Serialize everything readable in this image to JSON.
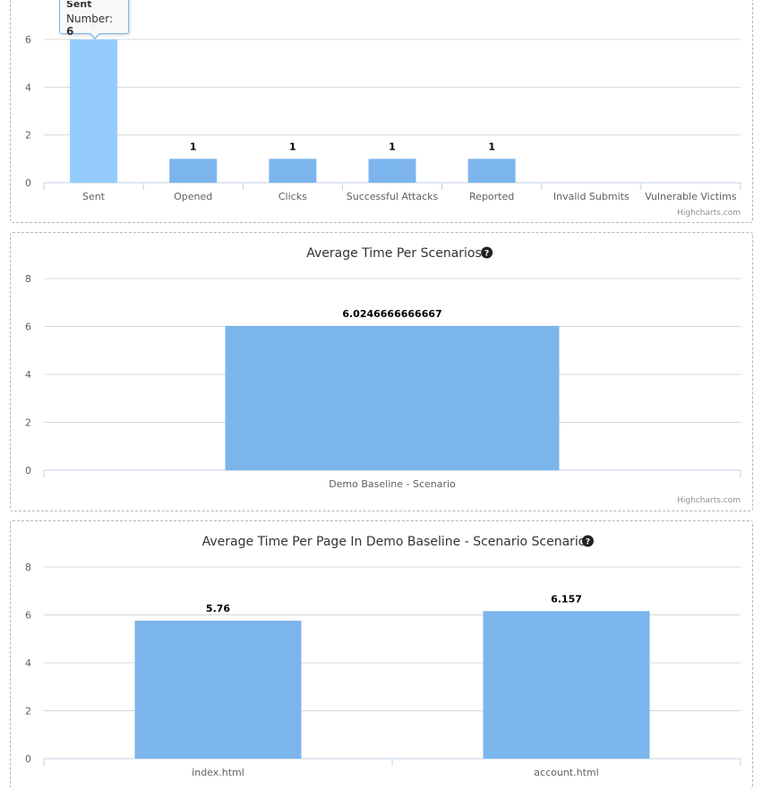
{
  "colors": {
    "bar": "#7cb5ec",
    "bar_hover": "#95ccff"
  },
  "chart_data": [
    {
      "type": "bar",
      "title": "",
      "categories": [
        "Sent",
        "Opened",
        "Clicks",
        "Successful Attacks",
        "Reported",
        "Invalid Submits",
        "Vulnerable Victims"
      ],
      "values": [
        6,
        1,
        1,
        1,
        1,
        0,
        0
      ],
      "data_labels": [
        "6",
        "1",
        "1",
        "1",
        "1",
        "",
        ""
      ],
      "yticks": [
        "0",
        "2",
        "4",
        "6"
      ],
      "ylim": [
        0,
        6
      ],
      "grid": true,
      "hovered_index": 0,
      "credits": "Highcharts.com",
      "tooltip": {
        "title": "Sent",
        "label": "Number:",
        "value": "6"
      }
    },
    {
      "type": "bar",
      "title": "Average Time Per Scenarios",
      "title_icon": "question-circle-icon",
      "categories": [
        "Demo Baseline - Scenario"
      ],
      "values": [
        6.0246666666667
      ],
      "data_labels": [
        "6.0246666666667"
      ],
      "yticks": [
        "0",
        "2",
        "4",
        "6",
        "8"
      ],
      "ylim": [
        0,
        8
      ],
      "grid": true,
      "credits": "Highcharts.com"
    },
    {
      "type": "bar",
      "title": "Average Time Per Page In Demo Baseline - Scenario Scenario",
      "title_icon": "question-circle-icon",
      "categories": [
        "index.html",
        "account.html"
      ],
      "values": [
        5.76,
        6.157
      ],
      "data_labels": [
        "5.76",
        "6.157"
      ],
      "yticks": [
        "0",
        "2",
        "4",
        "6",
        "8"
      ],
      "ylim": [
        0,
        8
      ],
      "grid": true
    }
  ]
}
